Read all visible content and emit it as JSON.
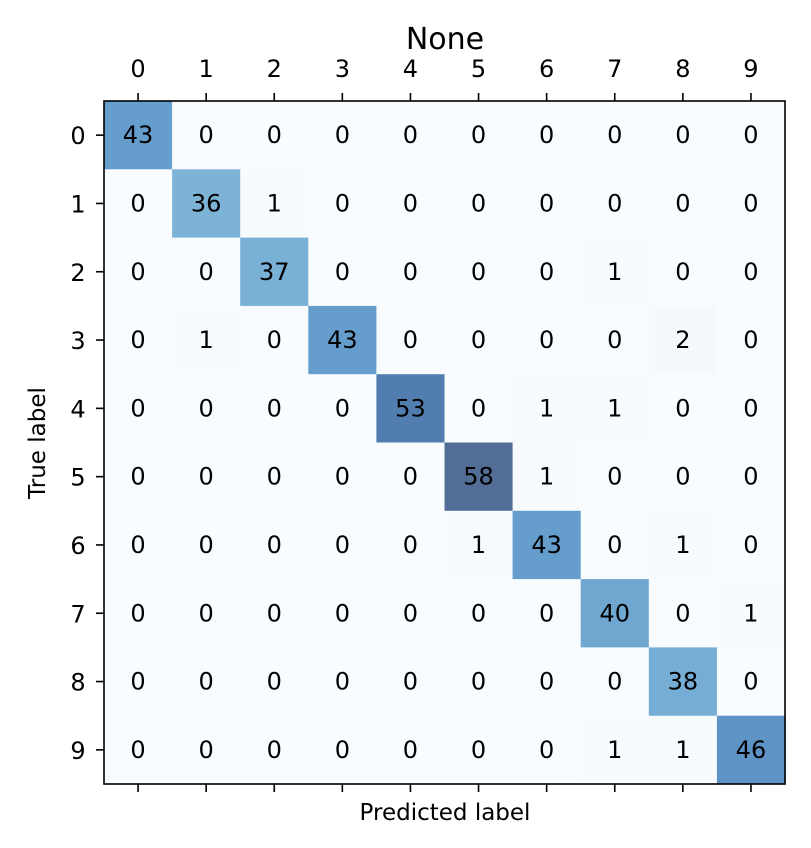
{
  "chart_data": {
    "type": "heatmap",
    "title": "None",
    "xlabel": "Predicted label",
    "ylabel": "True label",
    "x_categories": [
      "0",
      "1",
      "2",
      "3",
      "4",
      "5",
      "6",
      "7",
      "8",
      "9"
    ],
    "y_categories": [
      "0",
      "1",
      "2",
      "3",
      "4",
      "5",
      "6",
      "7",
      "8",
      "9"
    ],
    "values": [
      [
        43,
        0,
        0,
        0,
        0,
        0,
        0,
        0,
        0,
        0
      ],
      [
        0,
        36,
        1,
        0,
        0,
        0,
        0,
        0,
        0,
        0
      ],
      [
        0,
        0,
        37,
        0,
        0,
        0,
        0,
        1,
        0,
        0
      ],
      [
        0,
        1,
        0,
        43,
        0,
        0,
        0,
        0,
        2,
        0
      ],
      [
        0,
        0,
        0,
        0,
        53,
        0,
        1,
        1,
        0,
        0
      ],
      [
        0,
        0,
        0,
        0,
        0,
        58,
        1,
        0,
        0,
        0
      ],
      [
        0,
        0,
        0,
        0,
        0,
        1,
        43,
        0,
        1,
        0
      ],
      [
        0,
        0,
        0,
        0,
        0,
        0,
        0,
        40,
        0,
        1
      ],
      [
        0,
        0,
        0,
        0,
        0,
        0,
        0,
        0,
        38,
        0
      ],
      [
        0,
        0,
        0,
        0,
        0,
        0,
        0,
        1,
        1,
        46
      ]
    ],
    "colormap": "Blues",
    "x_ticks_position": "top",
    "grid": false,
    "legend": "none"
  }
}
